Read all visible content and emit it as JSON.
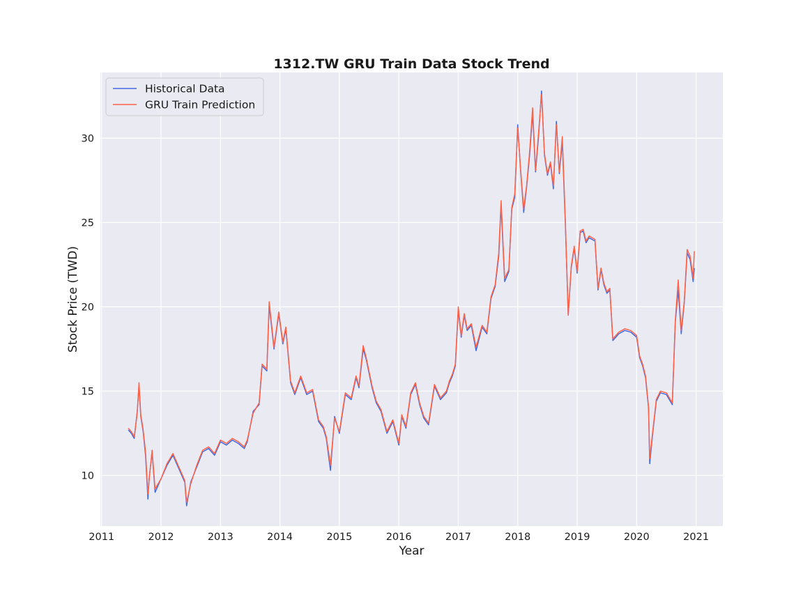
{
  "chart_data": {
    "type": "line",
    "title": "1312.TW  GRU Train Data Stock Trend",
    "xlabel": "Year",
    "ylabel": "Stock Price (TWD)",
    "xlim": [
      2010.98,
      2021.45
    ],
    "ylim": [
      7.0,
      33.9
    ],
    "x_ticks": [
      2011,
      2012,
      2013,
      2014,
      2015,
      2016,
      2017,
      2018,
      2019,
      2020,
      2021
    ],
    "x_tick_labels": [
      "2011",
      "2012",
      "2013",
      "2014",
      "2015",
      "2016",
      "2017",
      "2018",
      "2019",
      "2020",
      "2021"
    ],
    "y_ticks": [
      10,
      15,
      20,
      25,
      30
    ],
    "y_tick_labels": [
      "10",
      "15",
      "20",
      "25",
      "30"
    ],
    "grid": true,
    "legend_position": "top-left",
    "colors": {
      "Historical Data": "#4169e1",
      "GRU Train Prediction": "#ff6347",
      "plot_bg": "#eaeaf2",
      "grid": "#ffffff"
    },
    "series": [
      {
        "name": "Historical Data",
        "x": [
          2011.45,
          2011.5,
          2011.55,
          2011.6,
          2011.63,
          2011.66,
          2011.7,
          2011.74,
          2011.78,
          2011.8,
          2011.85,
          2011.9,
          2011.95,
          2012.0,
          2012.1,
          2012.2,
          2012.3,
          2012.4,
          2012.43,
          2012.5,
          2012.6,
          2012.7,
          2012.8,
          2012.9,
          2013.0,
          2013.1,
          2013.2,
          2013.3,
          2013.4,
          2013.45,
          2013.55,
          2013.65,
          2013.7,
          2013.78,
          2013.82,
          2013.9,
          2013.98,
          2014.05,
          2014.1,
          2014.18,
          2014.25,
          2014.35,
          2014.45,
          2014.55,
          2014.65,
          2014.73,
          2014.78,
          2014.85,
          2014.92,
          2015.0,
          2015.1,
          2015.2,
          2015.28,
          2015.33,
          2015.4,
          2015.45,
          2015.55,
          2015.62,
          2015.7,
          2015.8,
          2015.9,
          2016.0,
          2016.05,
          2016.12,
          2016.2,
          2016.28,
          2016.35,
          2016.42,
          2016.5,
          2016.6,
          2016.7,
          2016.8,
          2016.85,
          2016.9,
          2016.95,
          2017.0,
          2017.05,
          2017.1,
          2017.15,
          2017.22,
          2017.3,
          2017.4,
          2017.48,
          2017.55,
          2017.62,
          2017.68,
          2017.72,
          2017.78,
          2017.85,
          2017.9,
          2017.95,
          2018.0,
          2018.05,
          2018.1,
          2018.15,
          2018.2,
          2018.25,
          2018.3,
          2018.35,
          2018.4,
          2018.45,
          2018.5,
          2018.55,
          2018.6,
          2018.65,
          2018.7,
          2018.75,
          2018.8,
          2018.85,
          2018.9,
          2018.95,
          2019.0,
          2019.05,
          2019.1,
          2019.15,
          2019.2,
          2019.3,
          2019.35,
          2019.4,
          2019.45,
          2019.5,
          2019.55,
          2019.6,
          2019.7,
          2019.8,
          2019.9,
          2020.0,
          2020.05,
          2020.1,
          2020.15,
          2020.2,
          2020.22,
          2020.27,
          2020.33,
          2020.4,
          2020.5,
          2020.6,
          2020.65,
          2020.7,
          2020.75,
          2020.8,
          2020.85,
          2020.9,
          2020.95,
          2020.97
        ],
        "y": [
          12.7,
          12.5,
          12.2,
          13.8,
          15.3,
          13.5,
          12.6,
          11.2,
          8.6,
          9.8,
          11.4,
          9.0,
          9.4,
          9.8,
          10.6,
          11.2,
          10.4,
          9.6,
          8.2,
          9.6,
          10.5,
          11.4,
          11.6,
          11.2,
          12.0,
          11.8,
          12.1,
          11.9,
          11.6,
          12.0,
          13.8,
          14.2,
          16.5,
          16.2,
          20.1,
          17.5,
          19.6,
          17.8,
          18.7,
          15.5,
          14.8,
          15.8,
          14.8,
          15.0,
          13.2,
          12.8,
          12.2,
          10.3,
          13.5,
          12.5,
          14.8,
          14.5,
          15.8,
          15.2,
          17.5,
          16.9,
          15.2,
          14.3,
          13.8,
          12.5,
          13.2,
          11.8,
          13.5,
          12.8,
          14.8,
          15.4,
          14.2,
          13.4,
          13.0,
          15.3,
          14.5,
          14.9,
          15.5,
          15.9,
          16.5,
          19.8,
          18.2,
          19.5,
          18.6,
          18.9,
          17.4,
          18.8,
          18.4,
          20.5,
          21.2,
          23.0,
          26.0,
          21.5,
          22.1,
          25.8,
          26.5,
          30.8,
          28.0,
          25.6,
          27.1,
          29.0,
          31.5,
          28.0,
          30.1,
          32.8,
          29.0,
          27.8,
          28.5,
          27.0,
          31.0,
          27.9,
          29.8,
          25.0,
          19.5,
          22.3,
          23.5,
          22.0,
          24.4,
          24.5,
          23.8,
          24.1,
          23.9,
          21.0,
          22.2,
          21.3,
          20.8,
          21.0,
          18.0,
          18.4,
          18.6,
          18.5,
          18.2,
          17.0,
          16.5,
          15.8,
          14.0,
          10.7,
          12.5,
          14.4,
          14.9,
          14.8,
          14.2,
          19.1,
          21.0,
          18.4,
          20.2,
          23.2,
          22.8,
          21.5,
          22.3
        ]
      },
      {
        "name": "GRU Train Prediction",
        "x": [
          2011.45,
          2011.5,
          2011.55,
          2011.6,
          2011.63,
          2011.66,
          2011.7,
          2011.74,
          2011.78,
          2011.8,
          2011.85,
          2011.9,
          2011.95,
          2012.0,
          2012.1,
          2012.2,
          2012.3,
          2012.4,
          2012.43,
          2012.5,
          2012.6,
          2012.7,
          2012.8,
          2012.9,
          2013.0,
          2013.1,
          2013.2,
          2013.3,
          2013.4,
          2013.45,
          2013.55,
          2013.65,
          2013.7,
          2013.78,
          2013.82,
          2013.9,
          2013.98,
          2014.05,
          2014.1,
          2014.18,
          2014.25,
          2014.35,
          2014.45,
          2014.55,
          2014.65,
          2014.73,
          2014.78,
          2014.85,
          2014.92,
          2015.0,
          2015.1,
          2015.2,
          2015.28,
          2015.33,
          2015.4,
          2015.45,
          2015.55,
          2015.62,
          2015.7,
          2015.8,
          2015.9,
          2016.0,
          2016.05,
          2016.12,
          2016.2,
          2016.28,
          2016.35,
          2016.42,
          2016.5,
          2016.6,
          2016.7,
          2016.8,
          2016.85,
          2016.9,
          2016.95,
          2017.0,
          2017.05,
          2017.1,
          2017.15,
          2017.22,
          2017.3,
          2017.4,
          2017.48,
          2017.55,
          2017.62,
          2017.68,
          2017.72,
          2017.78,
          2017.85,
          2017.9,
          2017.95,
          2018.0,
          2018.05,
          2018.1,
          2018.15,
          2018.2,
          2018.25,
          2018.3,
          2018.35,
          2018.4,
          2018.45,
          2018.5,
          2018.55,
          2018.6,
          2018.65,
          2018.7,
          2018.75,
          2018.8,
          2018.85,
          2018.9,
          2018.95,
          2019.0,
          2019.05,
          2019.1,
          2019.15,
          2019.2,
          2019.3,
          2019.35,
          2019.4,
          2019.45,
          2019.5,
          2019.55,
          2019.6,
          2019.7,
          2019.8,
          2019.9,
          2020.0,
          2020.05,
          2020.1,
          2020.15,
          2020.2,
          2020.22,
          2020.27,
          2020.33,
          2020.4,
          2020.5,
          2020.6,
          2020.65,
          2020.7,
          2020.75,
          2020.8,
          2020.85,
          2020.9,
          2020.95,
          2020.97
        ],
        "y": [
          12.8,
          12.6,
          12.3,
          13.7,
          15.5,
          13.6,
          12.7,
          11.4,
          8.9,
          9.7,
          11.5,
          9.2,
          9.5,
          9.8,
          10.7,
          11.3,
          10.5,
          9.7,
          8.4,
          9.5,
          10.6,
          11.5,
          11.7,
          11.3,
          12.1,
          11.9,
          12.2,
          12.0,
          11.7,
          12.1,
          13.7,
          14.3,
          16.6,
          16.3,
          20.3,
          17.6,
          19.7,
          17.9,
          18.8,
          15.6,
          14.9,
          15.9,
          14.9,
          15.1,
          13.3,
          12.9,
          12.3,
          10.6,
          13.4,
          12.6,
          14.9,
          14.6,
          15.9,
          15.3,
          17.7,
          17.0,
          15.3,
          14.4,
          13.9,
          12.6,
          13.3,
          11.9,
          13.6,
          12.9,
          14.9,
          15.5,
          14.3,
          13.5,
          13.1,
          15.4,
          14.6,
          15.0,
          15.6,
          16.0,
          16.6,
          20.0,
          18.3,
          19.6,
          18.7,
          19.0,
          17.6,
          18.9,
          18.5,
          20.6,
          21.3,
          23.2,
          26.3,
          21.7,
          22.2,
          25.9,
          26.7,
          30.6,
          28.1,
          25.8,
          27.2,
          29.2,
          31.8,
          28.1,
          30.3,
          32.6,
          29.1,
          27.9,
          28.6,
          27.2,
          30.8,
          28.0,
          30.1,
          25.2,
          19.5,
          22.4,
          23.6,
          22.1,
          24.5,
          24.6,
          23.9,
          24.2,
          24.0,
          21.1,
          22.3,
          21.4,
          20.9,
          21.1,
          18.1,
          18.5,
          18.7,
          18.6,
          18.3,
          17.1,
          16.6,
          15.9,
          14.1,
          11.0,
          12.6,
          14.5,
          15.0,
          14.9,
          14.3,
          19.2,
          21.6,
          18.6,
          20.3,
          23.4,
          23.0,
          21.7,
          23.3
        ]
      }
    ]
  }
}
